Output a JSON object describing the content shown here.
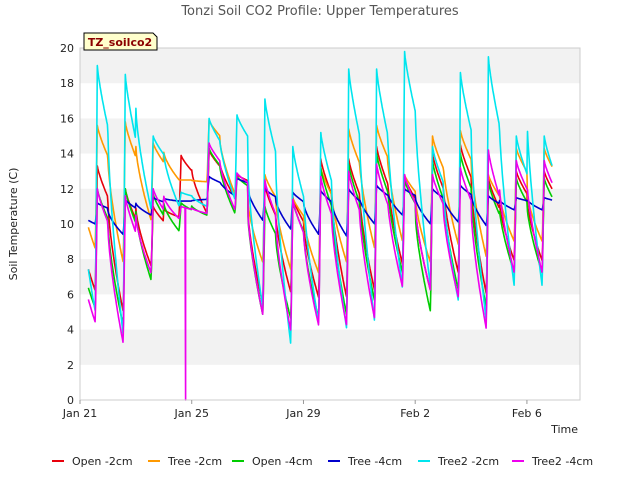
{
  "chart_data": {
    "type": "line",
    "title": "Tonzi Soil CO2 Profile: Upper Temperatures",
    "xlabel": "Time",
    "ylabel": "Soil Temperature (C)",
    "badge": "TZ_soilco2",
    "xlim": [
      0,
      17.9
    ],
    "ylim": [
      0,
      20
    ],
    "grid": "horizontal bands",
    "legend_position": "bottom",
    "yticks": [
      0,
      2,
      4,
      6,
      8,
      10,
      12,
      14,
      16,
      18,
      20
    ],
    "xticks": [
      {
        "x": 0,
        "label": "Jan 21"
      },
      {
        "x": 4,
        "label": "Jan 25"
      },
      {
        "x": 8,
        "label": "Jan 29"
      },
      {
        "x": 12,
        "label": "Feb 2"
      },
      {
        "x": 16,
        "label": "Feb 6"
      }
    ],
    "x_start": 0.3,
    "x_end": 16.9,
    "series": [
      {
        "name": "Open -2cm",
        "color": "#e8000b",
        "peaks": [
          13.3,
          12.0,
          11.0,
          13.9,
          14.2,
          12.8,
          12.2,
          11.5,
          13.7,
          13.7,
          14.4,
          12.7,
          14.0,
          14.5,
          12.6,
          13.0
        ],
        "troughs": [
          6.2,
          5.0,
          7.6,
          10.4,
          10.6,
          11.5,
          5.4,
          6.1,
          5.8,
          5.8,
          6.2,
          7.7,
          6.2,
          7.2,
          6.0,
          7.9
        ]
      },
      {
        "name": "Tree -2cm",
        "color": "#ff9900",
        "peaks": [
          15.6,
          15.8,
          14.6,
          12.5,
          15.9,
          12.6,
          12.8,
          11.5,
          13.2,
          15.4,
          15.6,
          12.8,
          15.0,
          15.3,
          12.8,
          14.3
        ],
        "troughs": [
          8.6,
          7.8,
          10.2,
          12.5,
          12.4,
          11.7,
          7.8,
          7.4,
          7.2,
          7.8,
          8.6,
          9.0,
          7.8,
          8.8,
          8.1,
          9.0
        ]
      },
      {
        "name": "Open -4cm",
        "color": "#00cc00",
        "peaks": [
          12.0,
          12.0,
          11.7,
          11.2,
          14.3,
          12.7,
          11.0,
          11.3,
          13.2,
          13.4,
          14.0,
          12.5,
          13.6,
          14.0,
          12.4,
          12.6
        ],
        "troughs": [
          5.2,
          4.2,
          6.8,
          9.6,
          10.5,
          10.6,
          4.8,
          4.6,
          4.6,
          4.8,
          5.6,
          7.2,
          5.0,
          6.2,
          5.2,
          7.2
        ]
      },
      {
        "name": "Tree -4cm",
        "color": "#0000cc",
        "peaks": [
          11.2,
          11.4,
          11.5,
          11.3,
          12.7,
          12.6,
          12.0,
          11.8,
          11.9,
          12.0,
          12.2,
          12.0,
          12.0,
          12.2,
          11.6,
          11.5
        ],
        "troughs": [
          10.0,
          9.4,
          10.5,
          11.3,
          11.4,
          11.6,
          10.2,
          9.7,
          9.4,
          9.3,
          10.0,
          10.5,
          10.0,
          10.1,
          9.9,
          10.8
        ]
      },
      {
        "name": "Tree2 -2cm",
        "color": "#00e5ee",
        "peaks": [
          19.0,
          18.5,
          15.0,
          11.8,
          16.0,
          16.2,
          17.1,
          14.4,
          15.2,
          18.8,
          18.8,
          19.8,
          14.4,
          18.6,
          19.5,
          15.0
        ],
        "troughs": [
          5.0,
          3.6,
          10.8,
          11.0,
          11.0,
          11.4,
          5.2,
          3.1,
          4.3,
          4.0,
          4.4,
          6.3,
          6.4,
          5.6,
          4.4,
          6.4
        ]
      },
      {
        "name": "Tree2 -4cm",
        "color": "#ee00ee",
        "peaks": [
          12.0,
          11.6,
          12.0,
          11.0,
          14.6,
          12.9,
          12.5,
          11.4,
          12.7,
          13.0,
          13.4,
          12.8,
          12.8,
          13.2,
          14.2,
          13.6
        ],
        "troughs": [
          4.4,
          3.2,
          7.2,
          10.3,
          10.6,
          10.8,
          4.8,
          3.9,
          4.2,
          4.2,
          4.6,
          6.4,
          6.2,
          5.8,
          4.0,
          7.2
        ]
      }
    ],
    "anomaly": {
      "series": "Tree2 -4cm",
      "x": 3.78,
      "y": 0
    }
  }
}
